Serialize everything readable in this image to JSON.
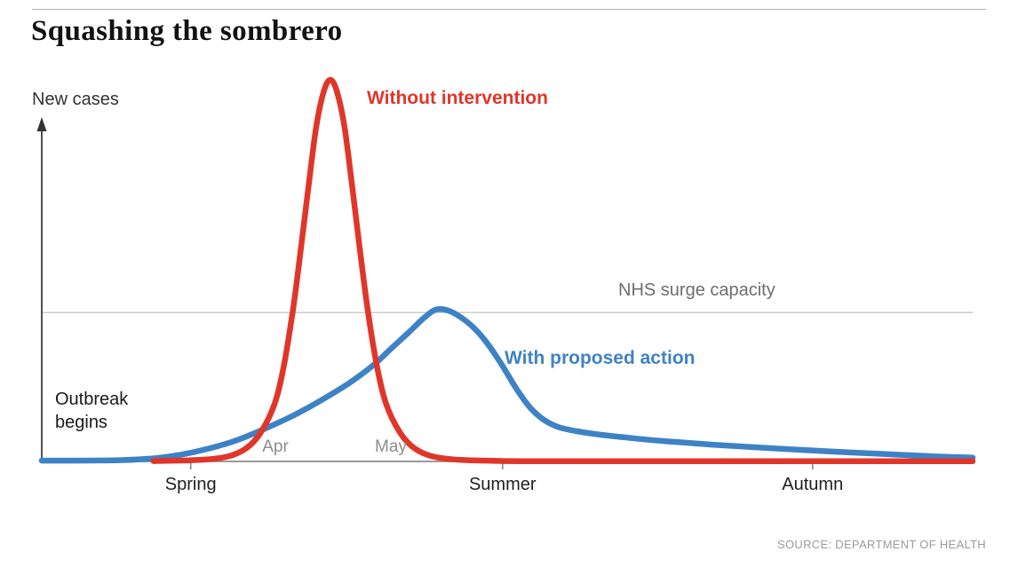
{
  "chart_data": {
    "type": "line",
    "title": "Squashing the sombrero",
    "y_axis_label": "New cases",
    "outbreak_label": "Outbreak\nbegins",
    "source": "SOURCE: DEPARTMENT OF HEALTH",
    "xlim": [
      0,
      100
    ],
    "ylim": [
      0,
      100
    ],
    "grid": false,
    "legend_position": "inline-annotations",
    "capacity_line": {
      "label": "NHS surge capacity",
      "y": 39
    },
    "x_axis_ticks": [
      {
        "label": "Spring",
        "x": 16
      },
      {
        "label": "Summer",
        "x": 49.5
      },
      {
        "label": "Autumn",
        "x": 82.8
      }
    ],
    "month_labels": [
      {
        "label": "Apr",
        "x": 25.1
      },
      {
        "label": "May",
        "x": 37.5
      }
    ],
    "colors": {
      "axis": "#8d8d8d",
      "y_axis": "#333333",
      "capacity_line": "#cccccc",
      "capacity_text": "#6e6e6e",
      "tick_text": "#1f1f1f",
      "month_text": "#8c8c8c"
    },
    "series": [
      {
        "name": "Without intervention",
        "color": "#e0362a",
        "points": [
          [
            12,
            0.1
          ],
          [
            17,
            0.4
          ],
          [
            20,
            1.3
          ],
          [
            22,
            3.5
          ],
          [
            23.5,
            7.5
          ],
          [
            25,
            15
          ],
          [
            26,
            25
          ],
          [
            27,
            40
          ],
          [
            27.8,
            55
          ],
          [
            28.7,
            73
          ],
          [
            29.5,
            88
          ],
          [
            30.3,
            97
          ],
          [
            31,
            100
          ],
          [
            31.7,
            97
          ],
          [
            32.5,
            88
          ],
          [
            33.3,
            73
          ],
          [
            34.2,
            55
          ],
          [
            35,
            40
          ],
          [
            36,
            25
          ],
          [
            37,
            15
          ],
          [
            38.5,
            7.5
          ],
          [
            40,
            3.5
          ],
          [
            42,
            1.3
          ],
          [
            45,
            0.4
          ],
          [
            50,
            0.1
          ],
          [
            56,
            0.05
          ],
          [
            70,
            0.05
          ],
          [
            100,
            0.05
          ]
        ]
      },
      {
        "name": "With proposed action",
        "color": "#3e82c6",
        "points": [
          [
            0,
            0.2
          ],
          [
            8,
            0.3
          ],
          [
            12,
            0.8
          ],
          [
            15,
            1.8
          ],
          [
            18,
            3.4
          ],
          [
            21,
            5.6
          ],
          [
            24,
            8.6
          ],
          [
            27,
            12
          ],
          [
            30,
            16
          ],
          [
            33,
            20.5
          ],
          [
            35.5,
            25
          ],
          [
            37.5,
            29.5
          ],
          [
            39.5,
            34
          ],
          [
            41,
            37.5
          ],
          [
            42.3,
            39.8
          ],
          [
            43.6,
            39.6
          ],
          [
            45,
            37.8
          ],
          [
            46.5,
            34.8
          ],
          [
            48,
            30.5
          ],
          [
            49.5,
            25
          ],
          [
            51,
            19
          ],
          [
            52.5,
            14
          ],
          [
            54,
            10.8
          ],
          [
            55.5,
            9
          ],
          [
            57.5,
            7.9
          ],
          [
            60,
            7
          ],
          [
            63,
            6.2
          ],
          [
            67,
            5.3
          ],
          [
            72,
            4.4
          ],
          [
            78,
            3.5
          ],
          [
            84,
            2.7
          ],
          [
            90,
            2
          ],
          [
            96,
            1.3
          ],
          [
            100,
            1
          ]
        ]
      }
    ]
  }
}
